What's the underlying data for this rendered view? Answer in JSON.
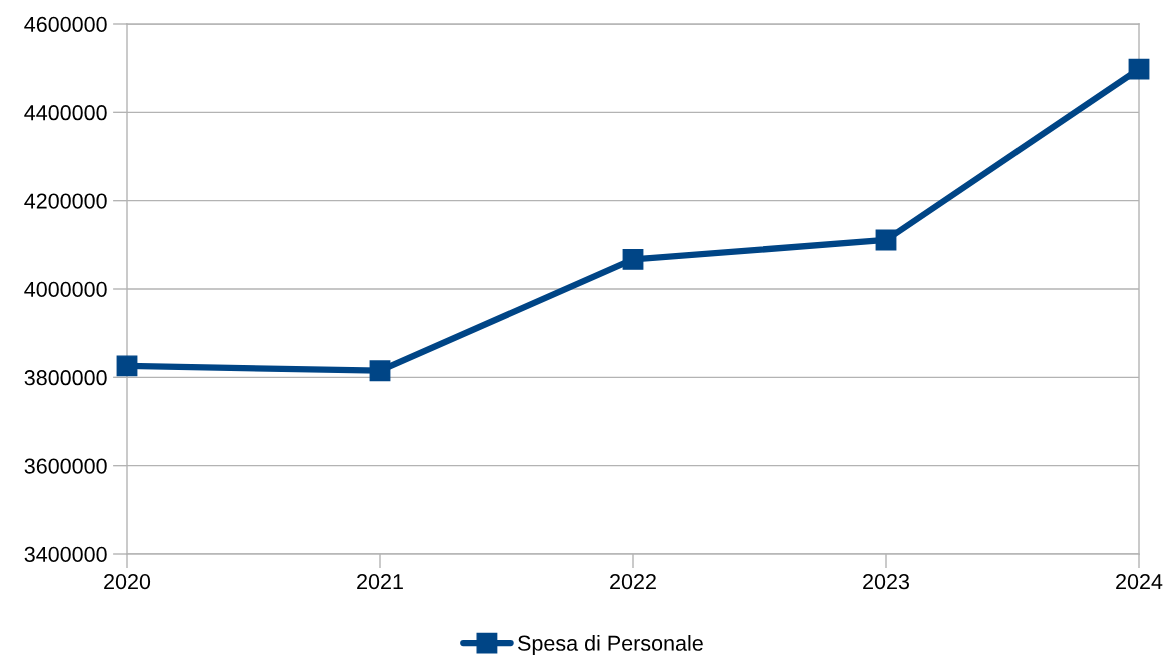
{
  "chart_data": {
    "type": "line",
    "x": [
      2020,
      2021,
      2022,
      2023,
      2024
    ],
    "series": [
      {
        "name": "Spesa di Personale",
        "color": "#004586",
        "values": [
          3826000,
          3815000,
          4067000,
          4111000,
          4498000
        ]
      }
    ],
    "xlim": [
      2020,
      2024
    ],
    "xticks": [
      2020,
      2021,
      2022,
      2023,
      2024
    ],
    "ylim": [
      3400000,
      4600000
    ],
    "yticks": [
      3400000,
      3600000,
      3800000,
      4000000,
      4200000,
      4400000,
      4600000
    ],
    "grid": "y",
    "legend": "bottom",
    "marker": "square",
    "line_style": "solid"
  }
}
